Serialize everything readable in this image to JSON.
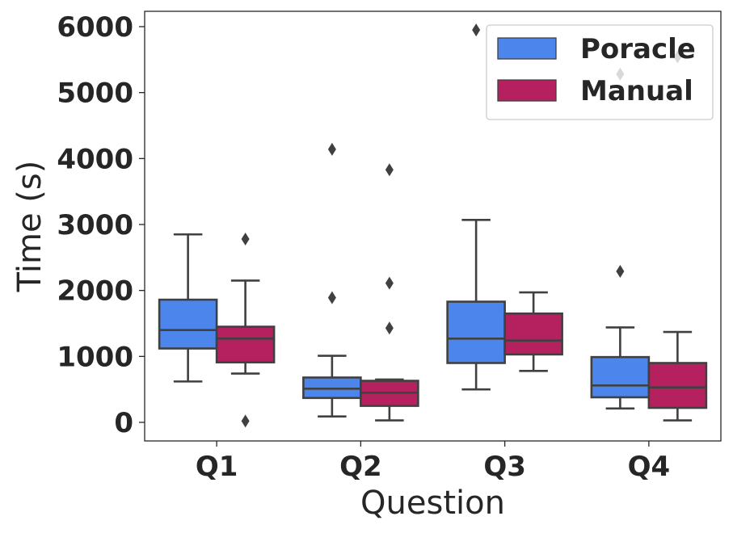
{
  "chart_data": {
    "type": "box",
    "xlabel": "Question",
    "ylabel": "Time (s)",
    "ylim": [
      -280,
      6250
    ],
    "yticks": [
      0,
      1000,
      2000,
      3000,
      4000,
      5000,
      6000
    ],
    "categories": [
      "Q1",
      "Q2",
      "Q3",
      "Q4"
    ],
    "grid": false,
    "legend_position": "top-right",
    "series": [
      {
        "name": "Poracle",
        "color": "#4c86ec",
        "boxes": [
          {
            "whisker_low": 620,
            "q1": 1120,
            "median": 1400,
            "q3": 1860,
            "whisker_high": 2850,
            "outliers": []
          },
          {
            "whisker_low": 90,
            "q1": 370,
            "median": 510,
            "q3": 680,
            "whisker_high": 1010,
            "outliers": [
              1890,
              4140
            ]
          },
          {
            "whisker_low": 500,
            "q1": 900,
            "median": 1270,
            "q3": 1830,
            "whisker_high": 3070,
            "outliers": [
              5950
            ]
          },
          {
            "whisker_low": 210,
            "q1": 380,
            "median": 560,
            "q3": 990,
            "whisker_high": 1440,
            "outliers": [
              2290,
              5280
            ]
          }
        ]
      },
      {
        "name": "Manual",
        "color": "#b5215f",
        "boxes": [
          {
            "whisker_low": 740,
            "q1": 910,
            "median": 1270,
            "q3": 1450,
            "whisker_high": 2150,
            "outliers": [
              20,
              2780
            ]
          },
          {
            "whisker_low": 30,
            "q1": 250,
            "median": 450,
            "q3": 630,
            "whisker_high": 650,
            "outliers": [
              1430,
              2110,
              3830
            ]
          },
          {
            "whisker_low": 780,
            "q1": 1030,
            "median": 1240,
            "q3": 1650,
            "whisker_high": 1970,
            "outliers": []
          },
          {
            "whisker_low": 30,
            "q1": 220,
            "median": 530,
            "q3": 900,
            "whisker_high": 1370,
            "outliers": [
              5540
            ]
          }
        ]
      }
    ]
  }
}
